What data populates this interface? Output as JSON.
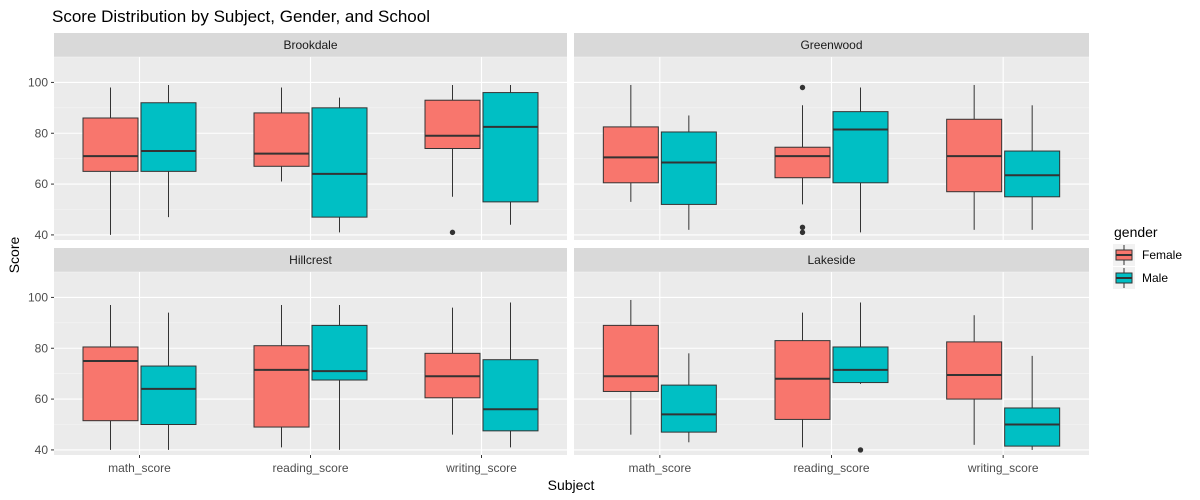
{
  "chart_data": {
    "type": "boxplot",
    "title": "Score Distribution by Subject, Gender, and School",
    "xlabel": "Subject",
    "ylabel": "Score",
    "categories": [
      "math_score",
      "reading_score",
      "writing_score"
    ],
    "ylim": [
      38,
      110
    ],
    "yticks": [
      40,
      60,
      80,
      100
    ],
    "legend": {
      "title": "gender",
      "position": "right",
      "entries": [
        {
          "name": "Female",
          "color": "#F8766D"
        },
        {
          "name": "Male",
          "color": "#00BFC4"
        }
      ]
    },
    "facets": [
      {
        "name": "Brookdale",
        "boxes": [
          {
            "category": "math_score",
            "gender": "Female",
            "min": 40,
            "q1": 65,
            "median": 71,
            "q3": 86,
            "max": 98,
            "outliers": []
          },
          {
            "category": "math_score",
            "gender": "Male",
            "min": 47,
            "q1": 65,
            "median": 73,
            "q3": 92,
            "max": 99,
            "outliers": []
          },
          {
            "category": "reading_score",
            "gender": "Female",
            "min": 61,
            "q1": 67,
            "median": 72,
            "q3": 88,
            "max": 98,
            "outliers": []
          },
          {
            "category": "reading_score",
            "gender": "Male",
            "min": 41,
            "q1": 47,
            "median": 64,
            "q3": 90,
            "max": 94,
            "outliers": []
          },
          {
            "category": "writing_score",
            "gender": "Female",
            "min": 55,
            "q1": 74,
            "median": 79,
            "q3": 93,
            "max": 99,
            "outliers": [
              41
            ]
          },
          {
            "category": "writing_score",
            "gender": "Male",
            "min": 44,
            "q1": 53,
            "median": 82.5,
            "q3": 96,
            "max": 99,
            "outliers": []
          }
        ]
      },
      {
        "name": "Greenwood",
        "boxes": [
          {
            "category": "math_score",
            "gender": "Female",
            "min": 53,
            "q1": 60.5,
            "median": 70.5,
            "q3": 82.5,
            "max": 99,
            "outliers": []
          },
          {
            "category": "math_score",
            "gender": "Male",
            "min": 42,
            "q1": 52,
            "median": 68.5,
            "q3": 80.5,
            "max": 87,
            "outliers": []
          },
          {
            "category": "reading_score",
            "gender": "Female",
            "min": 52,
            "q1": 62.5,
            "median": 71,
            "q3": 74.5,
            "max": 91,
            "outliers": [
              98,
              43,
              41
            ]
          },
          {
            "category": "reading_score",
            "gender": "Male",
            "min": 41,
            "q1": 60.5,
            "median": 81.5,
            "q3": 88.5,
            "max": 98,
            "outliers": []
          },
          {
            "category": "writing_score",
            "gender": "Female",
            "min": 42,
            "q1": 57,
            "median": 71,
            "q3": 85.5,
            "max": 99,
            "outliers": []
          },
          {
            "category": "writing_score",
            "gender": "Male",
            "min": 42,
            "q1": 55,
            "median": 63.5,
            "q3": 73,
            "max": 91,
            "outliers": []
          }
        ]
      },
      {
        "name": "Hillcrest",
        "boxes": [
          {
            "category": "math_score",
            "gender": "Female",
            "min": 40,
            "q1": 51.5,
            "median": 75,
            "q3": 80.5,
            "max": 97,
            "outliers": []
          },
          {
            "category": "math_score",
            "gender": "Male",
            "min": 40,
            "q1": 50,
            "median": 64,
            "q3": 73,
            "max": 94,
            "outliers": []
          },
          {
            "category": "reading_score",
            "gender": "Female",
            "min": 41,
            "q1": 49,
            "median": 71.5,
            "q3": 81,
            "max": 97,
            "outliers": []
          },
          {
            "category": "reading_score",
            "gender": "Male",
            "min": 40,
            "q1": 67.5,
            "median": 71,
            "q3": 89,
            "max": 97,
            "outliers": []
          },
          {
            "category": "writing_score",
            "gender": "Female",
            "min": 46,
            "q1": 60.5,
            "median": 69,
            "q3": 78,
            "max": 96,
            "outliers": []
          },
          {
            "category": "writing_score",
            "gender": "Male",
            "min": 41,
            "q1": 47.5,
            "median": 56,
            "q3": 75.5,
            "max": 98,
            "outliers": []
          }
        ]
      },
      {
        "name": "Lakeside",
        "boxes": [
          {
            "category": "math_score",
            "gender": "Female",
            "min": 46,
            "q1": 63,
            "median": 69,
            "q3": 89,
            "max": 99,
            "outliers": []
          },
          {
            "category": "math_score",
            "gender": "Male",
            "min": 43,
            "q1": 47,
            "median": 54,
            "q3": 65.5,
            "max": 78,
            "outliers": []
          },
          {
            "category": "reading_score",
            "gender": "Female",
            "min": 41,
            "q1": 52,
            "median": 68,
            "q3": 83,
            "max": 94,
            "outliers": []
          },
          {
            "category": "reading_score",
            "gender": "Male",
            "min": 66,
            "q1": 66.5,
            "median": 71.5,
            "q3": 80.5,
            "max": 98,
            "outliers": [
              40
            ]
          },
          {
            "category": "writing_score",
            "gender": "Female",
            "min": 42,
            "q1": 60,
            "median": 69.5,
            "q3": 82.5,
            "max": 93,
            "outliers": []
          },
          {
            "category": "writing_score",
            "gender": "Male",
            "min": 40,
            "q1": 41.5,
            "median": 50,
            "q3": 56.5,
            "max": 77,
            "outliers": []
          }
        ]
      }
    ]
  }
}
